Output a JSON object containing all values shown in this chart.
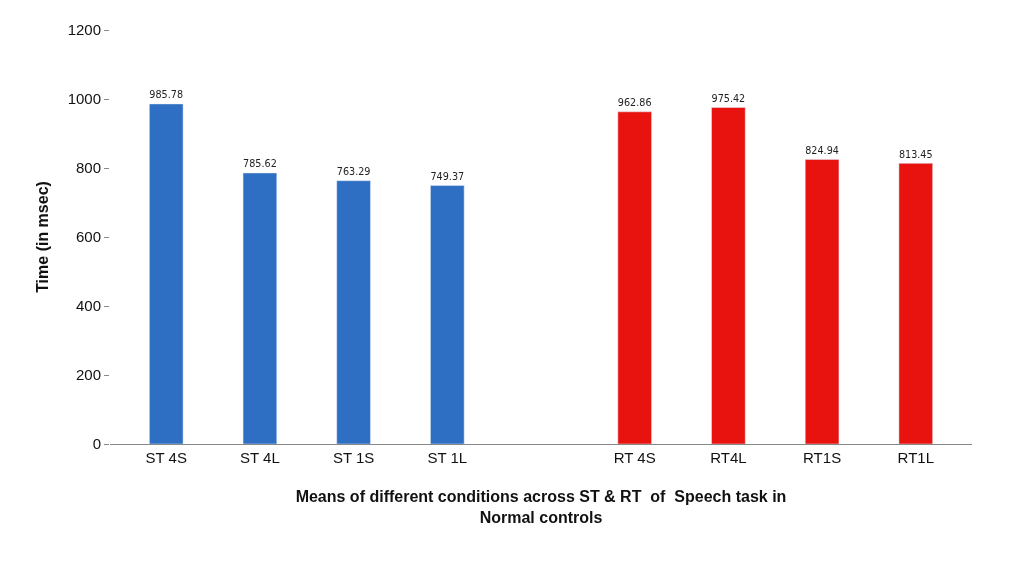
{
  "chart_data": {
    "type": "bar",
    "xlabel": "Means of different conditions across ST & RT  of  Speech task in Normal controls",
    "ylabel": "Time (in msec)",
    "categories": [
      "ST 4S",
      "ST 4L",
      "ST 1S",
      "ST 1L",
      null,
      "RT 4S",
      "RT4L",
      "RT1S",
      "RT1L"
    ],
    "values": [
      985.78,
      785.62,
      763.29,
      749.37,
      null,
      962.86,
      975.42,
      824.94,
      813.45
    ],
    "colors": [
      "#2e6fc4",
      "#2e6fc4",
      "#2e6fc4",
      "#2e6fc4",
      "#2e6fc4",
      "#e8120f",
      "#e8120f",
      "#e8120f",
      "#e8120f"
    ],
    "ylim": [
      0,
      1200
    ],
    "yticks": [
      0,
      200,
      400,
      600,
      800,
      1000,
      1200
    ],
    "data_labels": true
  }
}
